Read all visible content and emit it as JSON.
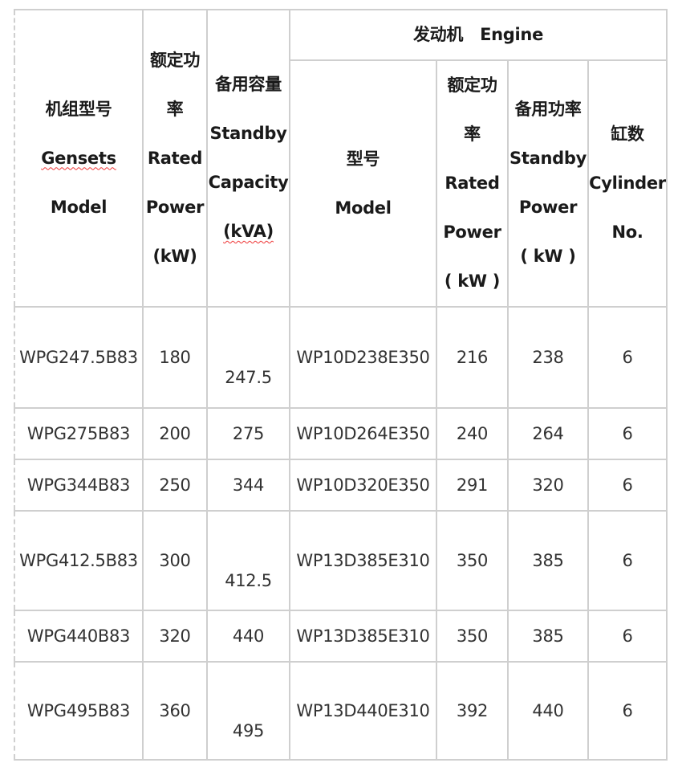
{
  "header": {
    "genset_model": {
      "zh": "机组型号",
      "en1": "Gensets",
      "en2": "Model"
    },
    "rated_power": {
      "zh1": "额定功",
      "zh2": "率",
      "en1": "Rated",
      "en2": "Power",
      "unit": "(kW)"
    },
    "standby_capacity": {
      "zh": "备用容量",
      "en1": "Standby",
      "en2": "Capacity",
      "unit": "(kVA)"
    },
    "engine_group": "发动机   Engine",
    "engine_model": {
      "zh": "型号",
      "en": "Model"
    },
    "engine_rated_power": {
      "zh1": "额定功",
      "zh2": "率",
      "en1": "Rated",
      "en2": "Power",
      "unit": "( kW )"
    },
    "engine_standby_power": {
      "zh": "备用功率",
      "en1": "Standby",
      "en2": "Power",
      "unit": "( kW )"
    },
    "cylinders": {
      "zh": "缸数",
      "en1": "Cylinder",
      "en2": "No."
    }
  },
  "rows": [
    {
      "genset": "WPG247.5B83",
      "rated": "180",
      "standby_kva": "247.5",
      "engine": "WP10D238E350",
      "eng_rated": "216",
      "eng_standby": "238",
      "cyl": "6"
    },
    {
      "genset": "WPG275B83",
      "rated": "200",
      "standby_kva": "275",
      "engine": "WP10D264E350",
      "eng_rated": "240",
      "eng_standby": "264",
      "cyl": "6"
    },
    {
      "genset": "WPG344B83",
      "rated": "250",
      "standby_kva": "344",
      "engine": "WP10D320E350",
      "eng_rated": "291",
      "eng_standby": "320",
      "cyl": "6"
    },
    {
      "genset": "WPG412.5B83",
      "rated": "300",
      "standby_kva": "412.5",
      "engine": "WP13D385E310",
      "eng_rated": "350",
      "eng_standby": "385",
      "cyl": "6"
    },
    {
      "genset": "WPG440B83",
      "rated": "320",
      "standby_kva": "440",
      "engine": "WP13D385E310",
      "eng_rated": "350",
      "eng_standby": "385",
      "cyl": "6"
    },
    {
      "genset": "WPG495B83",
      "rated": "360",
      "standby_kva": "495",
      "engine": "WP13D440E310",
      "eng_rated": "392",
      "eng_standby": "440",
      "cyl": "6"
    }
  ]
}
